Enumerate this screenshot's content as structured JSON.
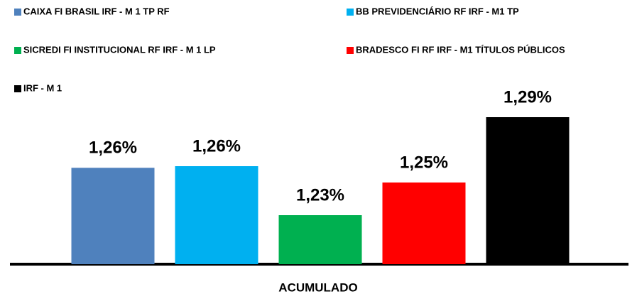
{
  "chart_data": {
    "type": "bar",
    "categories": [
      "ACUMULADO"
    ],
    "series": [
      {
        "name": "CAIXA FI BRASIL IRF - M 1 TP RF",
        "color": "#4f81bd",
        "values": [
          1.259
        ],
        "value_labels": [
          "1,26%"
        ]
      },
      {
        "name": "BB PREVIDENCIÁRIO RF IRF - M1 TP",
        "color": "#00b0f0",
        "values": [
          1.26
        ],
        "value_labels": [
          "1,26%"
        ]
      },
      {
        "name": "SICREDI FI INSTITUCIONAL RF IRF - M 1 LP",
        "color": "#00b050",
        "values": [
          1.23
        ],
        "value_labels": [
          "1,23%"
        ]
      },
      {
        "name": "BRADESCO FI RF IRF - M1 TÍTULOS PÚBLICOS",
        "color": "#ff0000",
        "values": [
          1.25
        ],
        "value_labels": [
          "1,25%"
        ]
      },
      {
        "name": "IRF - M 1",
        "color": "#000000",
        "values": [
          1.29
        ],
        "value_labels": [
          "1,29%"
        ]
      }
    ],
    "ylim": [
      1.2,
      1.3
    ],
    "legend": "top"
  }
}
